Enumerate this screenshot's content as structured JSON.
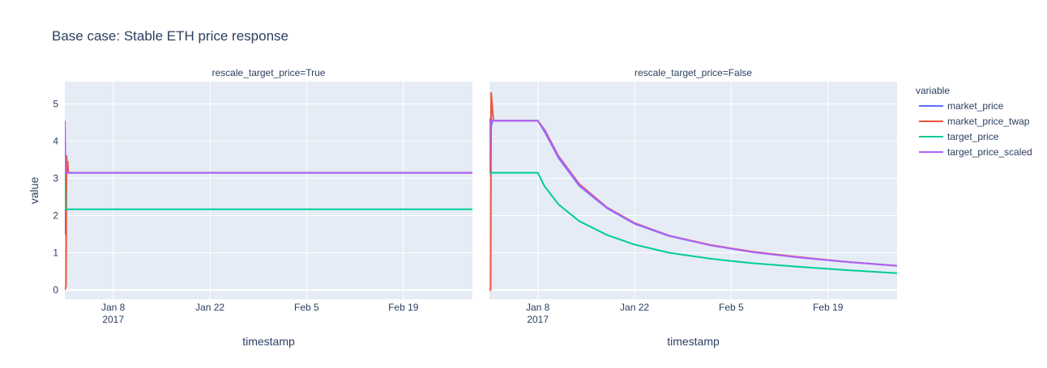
{
  "title": "Base case: Stable ETH price response",
  "legend": {
    "title": "variable",
    "items": [
      {
        "label": "market_price",
        "color": "#636efa"
      },
      {
        "label": "market_price_twap",
        "color": "#ef553b"
      },
      {
        "label": "target_price",
        "color": "#00cc96"
      },
      {
        "label": "target_price_scaled",
        "color": "#ab63fa"
      }
    ]
  },
  "chart_data": [
    {
      "type": "line",
      "title": "rescale_target_price=True",
      "xlabel": "timestamp",
      "ylabel": "value",
      "xlim": [
        "2017-01-01",
        "2017-03-01"
      ],
      "ylim": [
        -0.25,
        5.6
      ],
      "x_ticks": [
        {
          "date": "2017-01-08",
          "label": "Jan 8",
          "sublabel": "2017"
        },
        {
          "date": "2017-01-22",
          "label": "Jan 22"
        },
        {
          "date": "2017-02-05",
          "label": "Feb 5"
        },
        {
          "date": "2017-02-19",
          "label": "Feb 19"
        }
      ],
      "y_ticks": [
        0,
        1,
        2,
        3,
        4,
        5
      ],
      "grid": true,
      "series": [
        {
          "name": "market_price",
          "color": "#636efa",
          "points": [
            [
              "2017-01-01",
              4.55
            ],
            [
              "2017-01-01T02:00",
              1.5
            ],
            [
              "2017-01-01T05:00",
              3.5
            ],
            [
              "2017-01-01T08:00",
              3.15
            ],
            [
              "2017-03-01",
              3.15
            ]
          ]
        },
        {
          "name": "market_price_twap",
          "color": "#ef553b",
          "points": [
            [
              "2017-01-01",
              0.0
            ],
            [
              "2017-01-01T04:00",
              0.1
            ],
            [
              "2017-01-01T06:00",
              3.6
            ],
            [
              "2017-01-01T08:00",
              3.3
            ],
            [
              "2017-01-01T10:00",
              3.45
            ],
            [
              "2017-01-01T12:00",
              3.15
            ],
            [
              "2017-03-01",
              3.15
            ]
          ]
        },
        {
          "name": "target_price",
          "color": "#00cc96",
          "points": [
            [
              "2017-01-01",
              3.15
            ],
            [
              "2017-01-01T03:00",
              2.17
            ],
            [
              "2017-03-01",
              2.17
            ]
          ]
        },
        {
          "name": "target_price_scaled",
          "color": "#ab63fa",
          "points": [
            [
              "2017-01-01",
              4.55
            ],
            [
              "2017-01-01T03:00",
              3.15
            ],
            [
              "2017-03-01",
              3.15
            ]
          ]
        }
      ]
    },
    {
      "type": "line",
      "title": "rescale_target_price=False",
      "xlabel": "timestamp",
      "ylabel": "",
      "xlim": [
        "2017-01-01",
        "2017-03-01"
      ],
      "ylim": [
        -0.25,
        5.6
      ],
      "x_ticks": [
        {
          "date": "2017-01-08",
          "label": "Jan 8",
          "sublabel": "2017"
        },
        {
          "date": "2017-01-22",
          "label": "Jan 22"
        },
        {
          "date": "2017-02-05",
          "label": "Feb 5"
        },
        {
          "date": "2017-02-19",
          "label": "Feb 19"
        }
      ],
      "y_ticks": [
        0,
        1,
        2,
        3,
        4,
        5
      ],
      "grid": true,
      "series": [
        {
          "name": "market_price",
          "color": "#636efa",
          "points": [
            [
              "2017-01-01",
              3.15
            ],
            [
              "2017-01-01T02:00",
              4.6
            ],
            [
              "2017-01-01T06:00",
              4.4
            ],
            [
              "2017-01-01T10:00",
              4.55
            ],
            [
              "2017-01-08",
              4.55
            ],
            [
              "2017-01-09",
              4.25
            ],
            [
              "2017-01-11",
              3.55
            ],
            [
              "2017-01-14",
              2.8
            ],
            [
              "2017-01-18",
              2.2
            ],
            [
              "2017-01-22",
              1.78
            ],
            [
              "2017-01-27",
              1.45
            ],
            [
              "2017-02-02",
              1.2
            ],
            [
              "2017-02-08",
              1.02
            ],
            [
              "2017-02-15",
              0.87
            ],
            [
              "2017-02-22",
              0.75
            ],
            [
              "2017-03-01",
              0.65
            ]
          ]
        },
        {
          "name": "market_price_twap",
          "color": "#ef553b",
          "points": [
            [
              "2017-01-01",
              0.0
            ],
            [
              "2017-01-01T04:00",
              0.0
            ],
            [
              "2017-01-01T06:00",
              5.3
            ],
            [
              "2017-01-01T10:00",
              4.9
            ],
            [
              "2017-01-01T14:00",
              4.55
            ],
            [
              "2017-01-08",
              4.55
            ],
            [
              "2017-01-09",
              4.3
            ],
            [
              "2017-01-11",
              3.6
            ],
            [
              "2017-01-14",
              2.85
            ],
            [
              "2017-01-18",
              2.22
            ],
            [
              "2017-01-22",
              1.8
            ],
            [
              "2017-01-27",
              1.46
            ],
            [
              "2017-02-02",
              1.21
            ],
            [
              "2017-02-08",
              1.03
            ],
            [
              "2017-02-15",
              0.88
            ],
            [
              "2017-02-22",
              0.75
            ],
            [
              "2017-03-01",
              0.65
            ]
          ]
        },
        {
          "name": "target_price",
          "color": "#00cc96",
          "points": [
            [
              "2017-01-01",
              3.15
            ],
            [
              "2017-01-08",
              3.15
            ],
            [
              "2017-01-09",
              2.78
            ],
            [
              "2017-01-11",
              2.3
            ],
            [
              "2017-01-14",
              1.85
            ],
            [
              "2017-01-18",
              1.48
            ],
            [
              "2017-01-22",
              1.22
            ],
            [
              "2017-01-27",
              1.0
            ],
            [
              "2017-02-02",
              0.84
            ],
            [
              "2017-02-08",
              0.72
            ],
            [
              "2017-02-15",
              0.62
            ],
            [
              "2017-02-22",
              0.53
            ],
            [
              "2017-03-01",
              0.45
            ]
          ]
        },
        {
          "name": "target_price_scaled",
          "color": "#ab63fa",
          "points": [
            [
              "2017-01-01",
              3.15
            ],
            [
              "2017-01-01T02:00",
              4.55
            ],
            [
              "2017-01-08",
              4.55
            ],
            [
              "2017-01-09",
              4.28
            ],
            [
              "2017-01-11",
              3.58
            ],
            [
              "2017-01-14",
              2.82
            ],
            [
              "2017-01-18",
              2.21
            ],
            [
              "2017-01-22",
              1.79
            ],
            [
              "2017-01-27",
              1.46
            ],
            [
              "2017-02-02",
              1.2
            ],
            [
              "2017-02-08",
              1.02
            ],
            [
              "2017-02-15",
              0.87
            ],
            [
              "2017-02-22",
              0.75
            ],
            [
              "2017-03-01",
              0.65
            ]
          ]
        }
      ]
    }
  ]
}
